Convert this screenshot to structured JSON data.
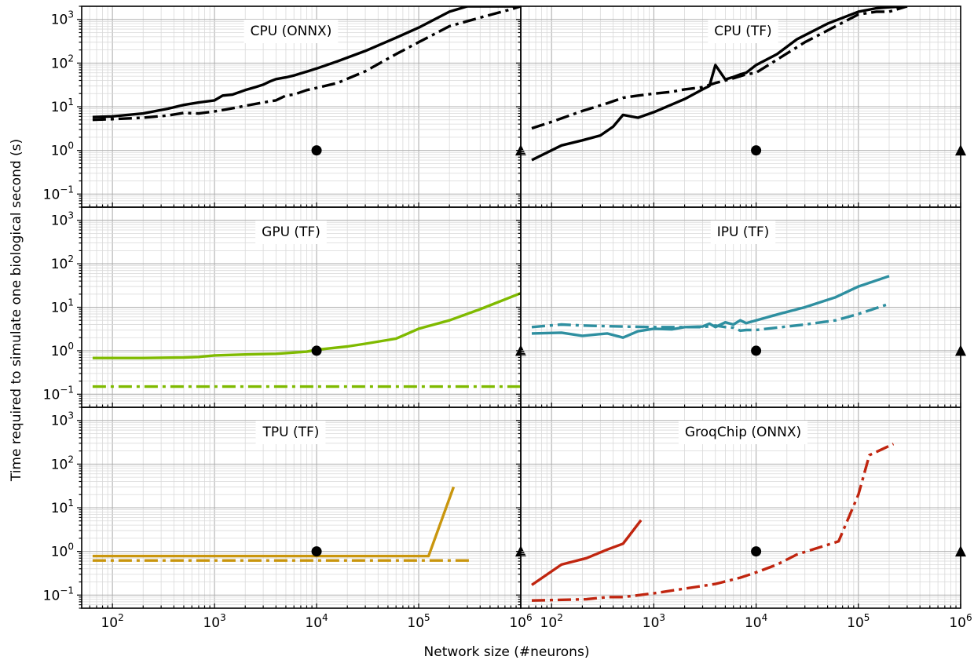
{
  "figure": {
    "xlabel": "Network size (#neurons)",
    "ylabel": "Time required to simulate one biological second (s)"
  },
  "chart_data": [
    {
      "type": "line",
      "title": "CPU (ONNX)",
      "xscale": "log",
      "yscale": "log",
      "xlim": [
        50,
        1000000
      ],
      "ylim": [
        0.05,
        2000
      ],
      "series": [
        {
          "style": "solid",
          "color": "#000000",
          "x": [
            64,
            100,
            200,
            350,
            500,
            700,
            1000,
            1200,
            1500,
            2000,
            2500,
            3000,
            3500,
            4000,
            5000,
            6000,
            7000,
            8000,
            10000,
            16000,
            30000,
            60000,
            100000,
            200000,
            300000,
            1000000
          ],
          "y": [
            5.8,
            6.0,
            7.0,
            9.0,
            11.0,
            12.5,
            14.0,
            18.0,
            19.0,
            24.0,
            28.0,
            32.0,
            38.0,
            43.0,
            47.0,
            52.0,
            58.0,
            64.0,
            75.0,
            110.0,
            190.0,
            380.0,
            650.0,
            1500.0,
            2000.0,
            2000.0
          ]
        },
        {
          "style": "dashdot",
          "color": "#000000",
          "x": [
            64,
            100,
            200,
            350,
            500,
            700,
            1000,
            1500,
            2000,
            3000,
            4000,
            5000,
            6000,
            8000,
            10000,
            16000,
            30000,
            60000,
            100000,
            200000,
            400000,
            800000,
            1000000
          ],
          "y": [
            5.0,
            5.2,
            5.6,
            6.3,
            7.2,
            7.0,
            7.8,
            9.2,
            10.5,
            12.5,
            14.0,
            18.0,
            19.0,
            24.0,
            27.0,
            35.0,
            65.0,
            160.0,
            300.0,
            700.0,
            1100.0,
            1700.0,
            2000.0
          ]
        }
      ],
      "markers": [
        {
          "shape": "circle",
          "x": 10000,
          "y": 1.0
        },
        {
          "shape": "triangle",
          "x": 1000000,
          "y": 1.0
        }
      ]
    },
    {
      "type": "line",
      "title": "CPU (TF)",
      "xscale": "log",
      "yscale": "log",
      "xlim": [
        50,
        1000000
      ],
      "ylim": [
        0.05,
        2000
      ],
      "series": [
        {
          "style": "solid",
          "color": "#000000",
          "x": [
            64,
            125,
            200,
            300,
            400,
            500,
            700,
            1000,
            2000,
            3000,
            3500,
            4000,
            5000,
            6000,
            7000,
            8000,
            10000,
            16000,
            25000,
            50000,
            100000,
            150000,
            200000,
            300000
          ],
          "y": [
            0.6,
            1.3,
            1.7,
            2.2,
            3.5,
            6.5,
            5.6,
            7.5,
            15.0,
            25.0,
            30.0,
            90.0,
            42.0,
            48.0,
            55.0,
            60.0,
            90.0,
            160.0,
            350.0,
            800.0,
            1500.0,
            1800.0,
            1900.0,
            2000.0
          ]
        },
        {
          "style": "dashdot",
          "color": "#000000",
          "x": [
            64,
            100,
            200,
            350,
            500,
            700,
            1000,
            1500,
            2000,
            3000,
            4000,
            5000,
            6000,
            8000,
            10000,
            16000,
            30000,
            60000,
            100000,
            150000,
            200000,
            300000
          ],
          "y": [
            3.2,
            4.5,
            8.0,
            12.0,
            16.0,
            18.0,
            20.0,
            22.0,
            25.0,
            28.0,
            35.0,
            40.0,
            45.0,
            55.0,
            60.0,
            120.0,
            300.0,
            700.0,
            1300.0,
            1500.0,
            1500.0,
            2000.0
          ]
        }
      ],
      "markers": [
        {
          "shape": "circle",
          "x": 10000,
          "y": 1.0
        },
        {
          "shape": "triangle",
          "x": 1000000,
          "y": 1.0
        }
      ]
    },
    {
      "type": "line",
      "title": "GPU (TF)",
      "xscale": "log",
      "yscale": "log",
      "xlim": [
        50,
        1000000
      ],
      "ylim": [
        0.05,
        2000
      ],
      "series": [
        {
          "style": "solid",
          "color": "#7fba00",
          "x": [
            64,
            200,
            500,
            700,
            1000,
            2000,
            4000,
            8000,
            10000,
            20000,
            30000,
            60000,
            100000,
            200000,
            400000,
            1000000
          ],
          "y": [
            0.68,
            0.68,
            0.7,
            0.72,
            0.78,
            0.82,
            0.85,
            0.95,
            1.05,
            1.25,
            1.45,
            1.9,
            3.2,
            5.0,
            9.0,
            21.0
          ]
        },
        {
          "style": "dashdot",
          "color": "#7fba00",
          "x": [
            64,
            200,
            500,
            1000,
            3000,
            10000,
            100000,
            1000000
          ],
          "y": [
            0.15,
            0.15,
            0.15,
            0.15,
            0.15,
            0.15,
            0.15,
            0.15
          ]
        }
      ],
      "markers": [
        {
          "shape": "circle",
          "x": 10000,
          "y": 1.0
        },
        {
          "shape": "triangle",
          "x": 1000000,
          "y": 1.0
        }
      ]
    },
    {
      "type": "line",
      "title": "IPU (TF)",
      "xscale": "log",
      "yscale": "log",
      "xlim": [
        50,
        1000000
      ],
      "ylim": [
        0.05,
        2000
      ],
      "series": [
        {
          "style": "solid",
          "color": "#2e8fa0",
          "x": [
            64,
            125,
            200,
            350,
            500,
            700,
            1000,
            1500,
            2000,
            3000,
            3500,
            4000,
            5000,
            6000,
            7000,
            8000,
            10000,
            16000,
            30000,
            60000,
            100000,
            200000
          ],
          "y": [
            2.5,
            2.6,
            2.2,
            2.5,
            2.0,
            2.8,
            3.2,
            3.1,
            3.5,
            3.6,
            4.2,
            3.5,
            4.5,
            4.0,
            5.0,
            4.3,
            5.0,
            6.8,
            10.0,
            17.0,
            30.0,
            52.0
          ]
        },
        {
          "style": "dashdot",
          "color": "#2e8fa0",
          "x": [
            64,
            125,
            200,
            500,
            1000,
            2000,
            3000,
            4000,
            5000,
            6000,
            7000,
            8000,
            10000,
            30000,
            60000,
            100000,
            200000
          ],
          "y": [
            3.5,
            4.0,
            3.8,
            3.6,
            3.5,
            3.5,
            3.5,
            3.8,
            3.5,
            3.4,
            2.9,
            3.0,
            3.0,
            4.0,
            5.0,
            7.0,
            12.0
          ]
        }
      ],
      "markers": [
        {
          "shape": "circle",
          "x": 10000,
          "y": 1.0
        },
        {
          "shape": "triangle",
          "x": 1000000,
          "y": 1.0
        }
      ]
    },
    {
      "type": "line",
      "title": "TPU (TF)",
      "xscale": "log",
      "yscale": "log",
      "xlim": [
        50,
        1000000
      ],
      "ylim": [
        0.05,
        2000
      ],
      "series": [
        {
          "style": "solid",
          "color": "#c9960e",
          "x": [
            64,
            1000,
            10000,
            100000,
            125000,
            220000
          ],
          "y": [
            0.78,
            0.78,
            0.78,
            0.78,
            0.78,
            30.0
          ]
        },
        {
          "style": "dashdot",
          "color": "#c9960e",
          "x": [
            64,
            1000,
            10000,
            100000,
            330000
          ],
          "y": [
            0.62,
            0.62,
            0.62,
            0.62,
            0.62
          ]
        }
      ],
      "markers": [
        {
          "shape": "circle",
          "x": 10000,
          "y": 1.0
        },
        {
          "shape": "triangle",
          "x": 1000000,
          "y": 1.0
        }
      ]
    },
    {
      "type": "line",
      "title": "GroqChip (ONNX)",
      "xscale": "log",
      "yscale": "log",
      "xlim": [
        50,
        1000000
      ],
      "ylim": [
        0.05,
        2000
      ],
      "series": [
        {
          "style": "solid",
          "color": "#c0250f",
          "x": [
            64,
            125,
            220,
            350,
            500,
            750
          ],
          "y": [
            0.17,
            0.5,
            0.7,
            1.1,
            1.5,
            5.2
          ]
        },
        {
          "style": "dashdot",
          "color": "#c0250f",
          "x": [
            64,
            220,
            350,
            500,
            1000,
            2000,
            4000,
            7000,
            10000,
            16000,
            25000,
            64000,
            100000,
            128000,
            220000
          ],
          "y": [
            0.075,
            0.08,
            0.09,
            0.09,
            0.11,
            0.14,
            0.18,
            0.25,
            0.33,
            0.5,
            0.85,
            1.7,
            20.0,
            160.0,
            290.0
          ]
        }
      ],
      "markers": [
        {
          "shape": "circle",
          "x": 10000,
          "y": 1.0
        },
        {
          "shape": "triangle",
          "x": 1000000,
          "y": 1.0
        }
      ]
    }
  ],
  "ticks": {
    "x": [
      {
        "base": "10",
        "exp": "2",
        "value": 100
      },
      {
        "base": "10",
        "exp": "3",
        "value": 1000
      },
      {
        "base": "10",
        "exp": "4",
        "value": 10000
      },
      {
        "base": "10",
        "exp": "5",
        "value": 100000
      },
      {
        "base": "10",
        "exp": "6",
        "value": 1000000
      }
    ],
    "y": [
      {
        "base": "10",
        "exp": "−1",
        "value": 0.1
      },
      {
        "base": "10",
        "exp": "0",
        "value": 1
      },
      {
        "base": "10",
        "exp": "1",
        "value": 10
      },
      {
        "base": "10",
        "exp": "2",
        "value": 100
      },
      {
        "base": "10",
        "exp": "3",
        "value": 1000
      }
    ]
  }
}
